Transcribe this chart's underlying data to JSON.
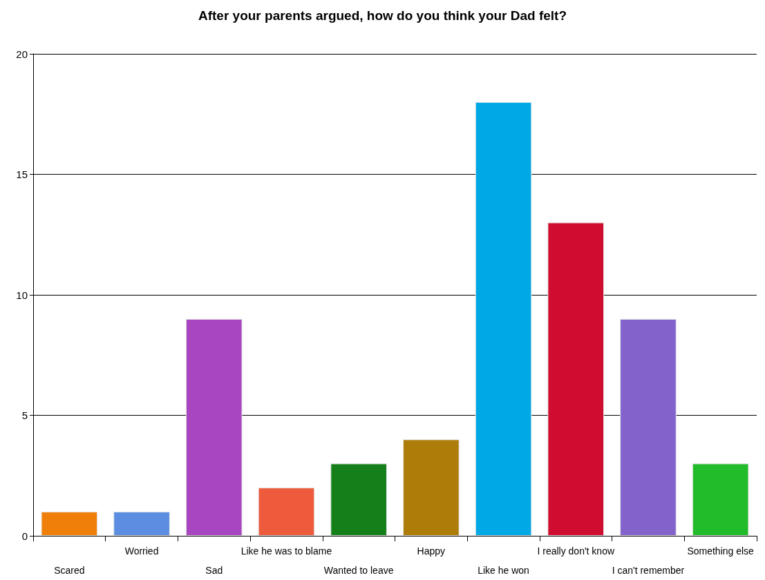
{
  "chart_data": {
    "type": "bar",
    "title": "After your parents argued, how do you think your Dad felt?",
    "categories": [
      "Scared",
      "Worried",
      "Sad",
      "Like he was to blame",
      "Wanted to leave",
      "Happy",
      "Like he won",
      "I really don't know",
      "I can't remember",
      "Something else"
    ],
    "values": [
      1,
      1,
      9,
      2,
      3,
      4,
      18,
      13,
      9,
      3
    ],
    "colors": [
      "#f07f09",
      "#5b8ee0",
      "#a845c0",
      "#ee5a3c",
      "#15801a",
      "#ae7c08",
      "#00a8e6",
      "#cf0d30",
      "#8462cc",
      "#22bb2a"
    ],
    "ylim": [
      0,
      20
    ],
    "yticks": [
      0,
      5,
      10,
      15,
      20
    ],
    "grid": "y"
  }
}
